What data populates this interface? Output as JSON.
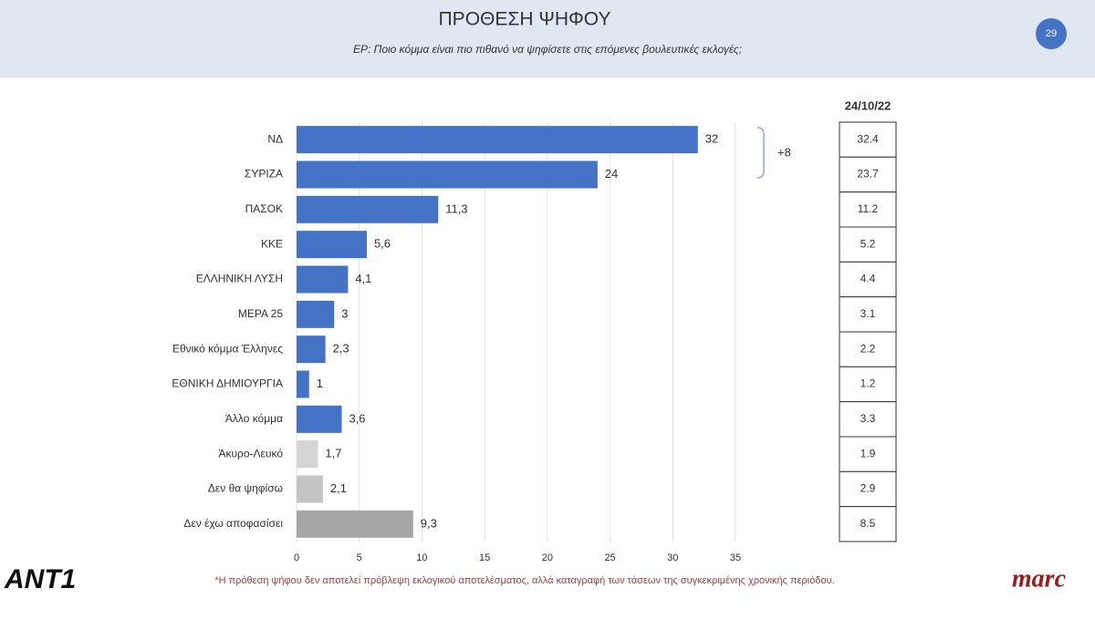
{
  "chart_data": {
    "type": "bar",
    "orientation": "horizontal",
    "title": "ΠΡΟΘΕΣΗ ΨΗΦΟΥ",
    "subtitle": "ΕΡ: Ποιο κόμμα είναι πιο πιθανό να ψηφίσετε στις επόμενες βουλευτικές εκλογές;",
    "page_number": "29",
    "categories": [
      "ΝΔ",
      "ΣΥΡΙΖΑ",
      "ΠΑΣΟΚ",
      "ΚΚΕ",
      "ΕΛΛΗΝΙΚΗ ΛΥΣΗ",
      "ΜΕΡΑ 25",
      "Εθνικό κόμμα Έλληνες",
      "ΕΘΝΙΚΗ ΔΗΜΙΟΥΡΓΙΑ",
      "Άλλο κόμμα",
      "Άκυρο-Λευκό",
      "Δεν θα ψηφίσω",
      "Δεν έχω αποφασίσει"
    ],
    "values": [
      32,
      24,
      11.3,
      5.6,
      4.1,
      3,
      2.3,
      1,
      3.6,
      1.7,
      2.1,
      9.3
    ],
    "value_labels": [
      "32",
      "24",
      "11,3",
      "5,6",
      "4,1",
      "3",
      "2,3",
      "1",
      "3,6",
      "1,7",
      "2,1",
      "9,3"
    ],
    "colors": [
      "#4472c4",
      "#4472c4",
      "#4472c4",
      "#4472c4",
      "#4472c4",
      "#4472c4",
      "#4472c4",
      "#4472c4",
      "#4472c4",
      "#d4d4d4",
      "#c4c4c4",
      "#a6a6a6"
    ],
    "xlim": [
      0,
      35
    ],
    "xticks": [
      0,
      5,
      10,
      15,
      20,
      25,
      30,
      35
    ],
    "grid": true,
    "annotation": "+8",
    "comparison": {
      "label": "24/10/22",
      "values": [
        32.4,
        23.7,
        11.2,
        5.2,
        4.4,
        3.1,
        2.2,
        1.2,
        3.3,
        1.9,
        2.9,
        8.5
      ]
    },
    "footnote": "*Η πρόθεση ψήφου δεν αποτελεί πρόβλεψη εκλογικού αποτελέσματος, αλλά καταγραφή των τάσεων της συγκεκριμένης χρονικής περιόδου.",
    "logos": [
      "ANT1",
      "marc"
    ]
  }
}
